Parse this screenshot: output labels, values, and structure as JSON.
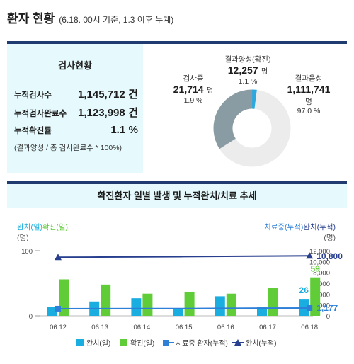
{
  "header": {
    "title": "환자 현황",
    "subtitle": "(6.18. 00시 기준, 1.3 이후 누계)"
  },
  "tests": {
    "title": "검사현황",
    "rows": [
      {
        "label": "누적검사수",
        "value": "1,145,712",
        "unit": "건"
      },
      {
        "label": "누적검사완료수",
        "value": "1,123,998",
        "unit": "건"
      },
      {
        "label": "누적확진률",
        "value": "1.1",
        "unit": "%"
      }
    ],
    "note": "(결과양성 / 총 검사완료수 * 100%)"
  },
  "donut": {
    "colors": {
      "positive": "#29a9e1",
      "testing": "#8a9ca3",
      "negative": "#ececec"
    },
    "positive": {
      "name": "결과양성(확진)",
      "value": "12,257",
      "unit": "명",
      "pct": "1.1 %",
      "share": 1.1
    },
    "testing": {
      "name": "검사중",
      "value": "21,714",
      "unit": "명",
      "pct": "1.9 %",
      "share": 1.9
    },
    "negative": {
      "name": "결과음성",
      "value": "1,111,741",
      "unit": "명",
      "pct": "97.0 %",
      "share": 97.0
    }
  },
  "chart_title": "확진환자 일별 발생 및 누적완치/치료 추세",
  "chart_data": {
    "type": "bar",
    "categories": [
      "06.12",
      "06.13",
      "06.14",
      "06.15",
      "06.16",
      "06.17",
      "06.18"
    ],
    "left_axis": {
      "label": "완치(일)확진(일)",
      "unit": "(명)",
      "ticks": [
        "100",
        "0"
      ],
      "ylim": [
        0,
        100
      ]
    },
    "right_axis": {
      "label": "치료중(누적)완치(누적)",
      "unit": "(명)",
      "ticks": [
        "12,000",
        "10,000",
        "8,000",
        "6,000",
        "4,000",
        "2,000",
        "0"
      ],
      "ylim": [
        0,
        12000
      ]
    },
    "series": [
      {
        "name": "완치(일)",
        "type": "bar",
        "axis": "left",
        "color": "#1aaee0",
        "values": [
          14,
          22,
          27,
          11,
          30,
          13,
          26
        ]
      },
      {
        "name": "확진(일)",
        "type": "bar",
        "axis": "left",
        "color": "#5fcc38",
        "values": [
          56,
          48,
          34,
          37,
          34,
          43,
          59
        ]
      },
      {
        "name": "치료중 환자(누적)",
        "type": "line",
        "axis": "right",
        "color": "#2e7fd8",
        "values": [
          1050,
          1060,
          1070,
          1080,
          1120,
          1150,
          1177
        ]
      },
      {
        "name": "완치(누적)",
        "type": "line",
        "axis": "right",
        "color": "#273f8e",
        "values": [
          10530,
          10560,
          10600,
          10640,
          10690,
          10740,
          10800
        ]
      }
    ],
    "labels": {
      "confirmed_last": "59",
      "recovered_last": "26",
      "treating_last": "1,177",
      "cum_last": "10,800"
    },
    "legend": [
      "완치(일)",
      "확진(일)",
      "치료중 환자(누적)",
      "완치(누적)"
    ]
  }
}
